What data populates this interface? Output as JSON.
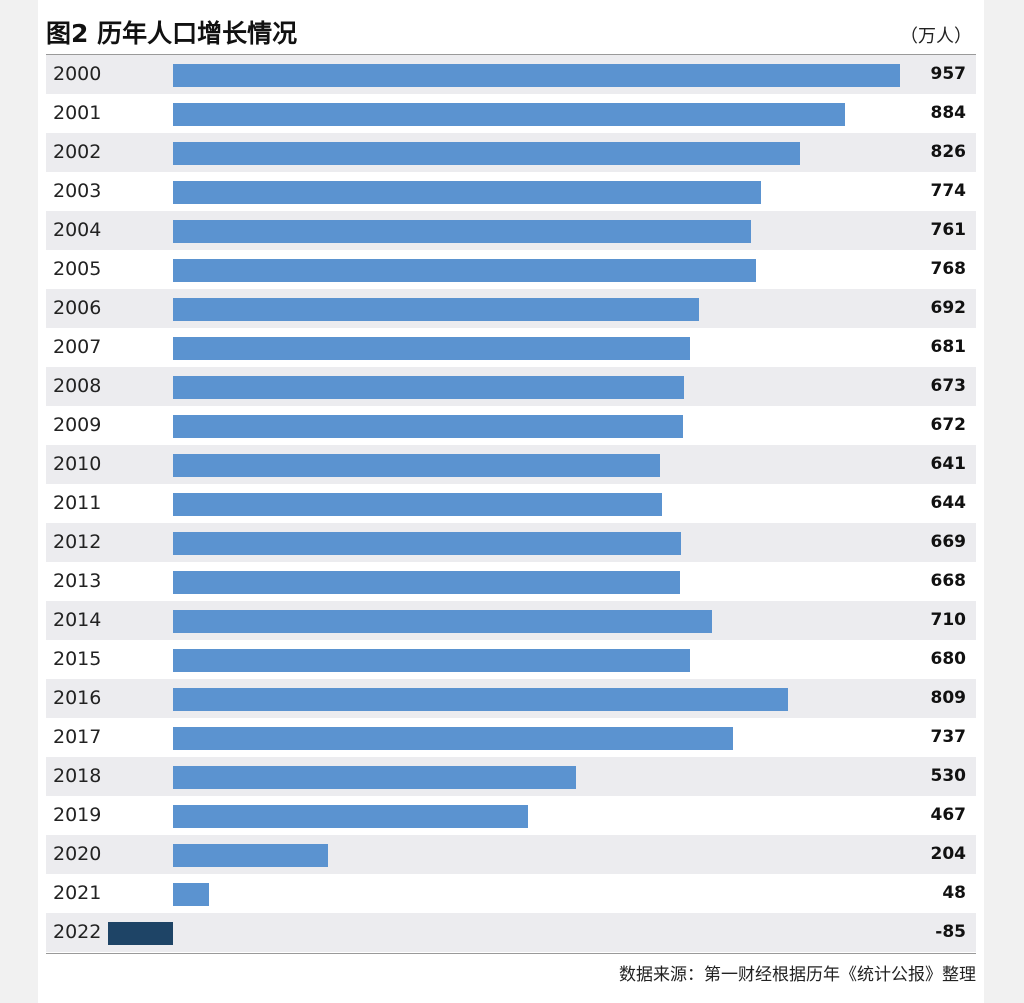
{
  "header": {
    "title": "图2 历年人口增长情况",
    "unit": "（万人）"
  },
  "footer": {
    "source": "数据来源：第一财经根据历年《统计公报》整理"
  },
  "colors": {
    "positive_bar": "#5b93d0",
    "negative_bar": "#1e4466",
    "row_shade": "#ececef"
  },
  "chart_data": {
    "type": "bar",
    "orientation": "horizontal",
    "title": "图2 历年人口增长情况",
    "unit": "（万人）",
    "categories": [
      "2000",
      "2001",
      "2002",
      "2003",
      "2004",
      "2005",
      "2006",
      "2007",
      "2008",
      "2009",
      "2010",
      "2011",
      "2012",
      "2013",
      "2014",
      "2015",
      "2016",
      "2017",
      "2018",
      "2019",
      "2020",
      "2021",
      "2022"
    ],
    "values": [
      957,
      884,
      826,
      774,
      761,
      768,
      692,
      681,
      673,
      672,
      641,
      644,
      669,
      668,
      710,
      680,
      809,
      737,
      530,
      467,
      204,
      48,
      -85
    ],
    "xlim": [
      -85,
      957
    ],
    "data_labels": true,
    "grid": false,
    "legend": "none"
  }
}
